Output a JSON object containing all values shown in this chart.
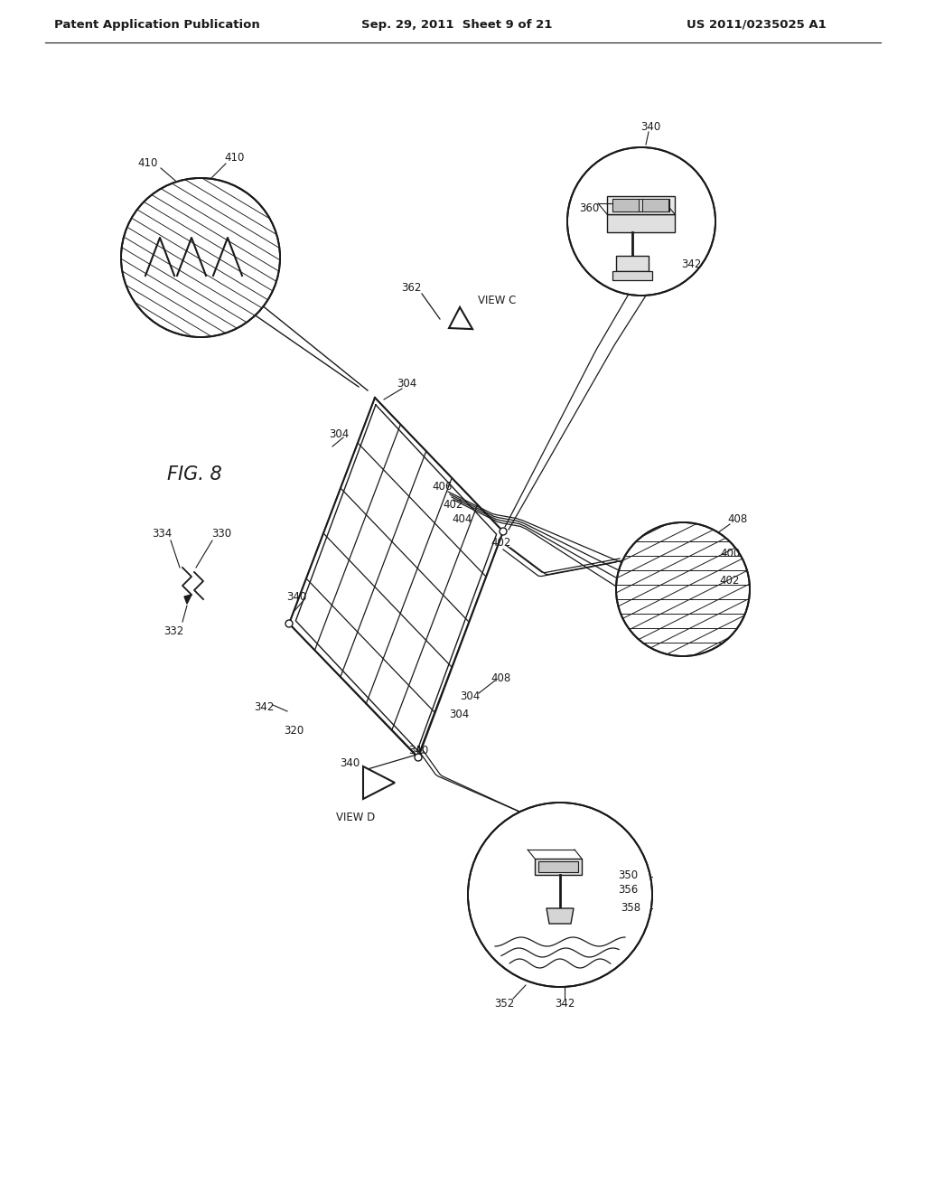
{
  "bg_color": "#ffffff",
  "lc": "#1a1a1a",
  "header_left": "Patent Application Publication",
  "header_mid": "Sep. 29, 2011  Sheet 9 of 21",
  "header_right": "US 2011/0235025 A1",
  "hfs": 9.5,
  "lfs": 8.5,
  "figfs": 15,
  "panel_n": 5,
  "panel_lw": 1.5,
  "grid_lw": 0.9,
  "circ_lw": 1.4,
  "conn_lw": 0.9
}
